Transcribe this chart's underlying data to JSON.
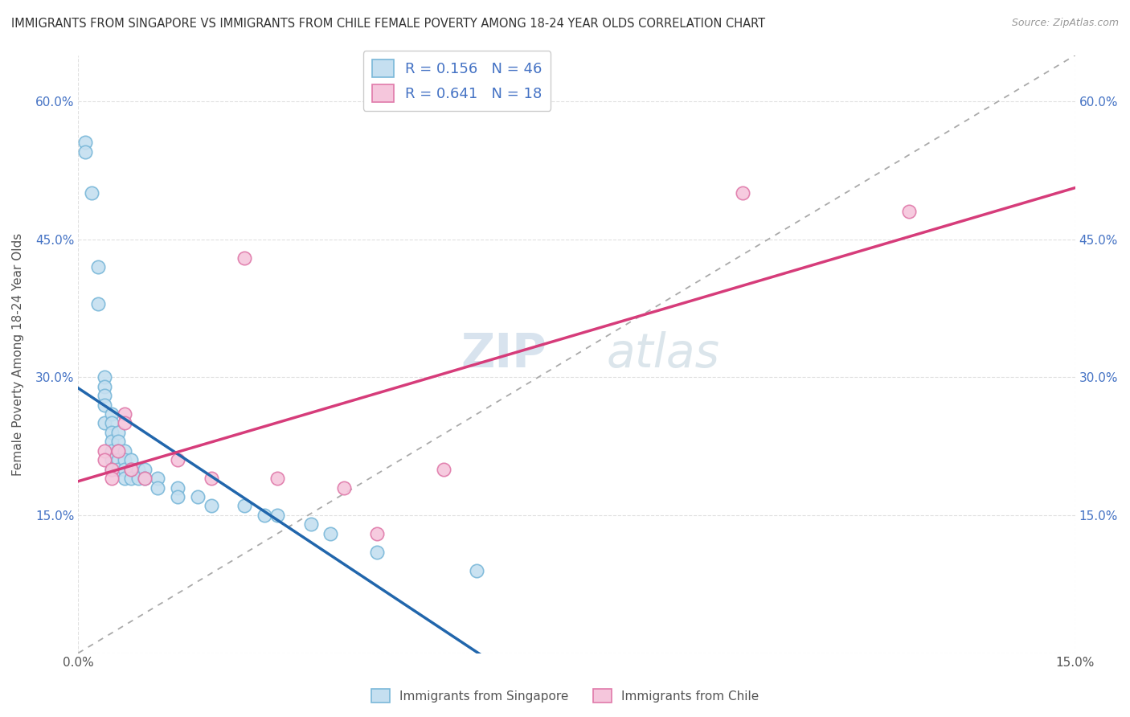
{
  "title": "IMMIGRANTS FROM SINGAPORE VS IMMIGRANTS FROM CHILE FEMALE POVERTY AMONG 18-24 YEAR OLDS CORRELATION CHART",
  "source": "Source: ZipAtlas.com",
  "ylabel": "Female Poverty Among 18-24 Year Olds",
  "xlim": [
    0.0,
    0.15
  ],
  "ylim": [
    0.0,
    0.65
  ],
  "yticks": [
    0.0,
    0.15,
    0.3,
    0.45,
    0.6
  ],
  "yticklabels": [
    "",
    "15.0%",
    "30.0%",
    "45.0%",
    "60.0%"
  ],
  "singapore_color": "#7ab8d9",
  "singapore_fill": "#c5dff0",
  "chile_color": "#e07aaa",
  "chile_fill": "#f5c6dc",
  "trend_singapore_color": "#2166ac",
  "trend_chile_color": "#d63c7a",
  "trend_ref_color": "#aaaaaa",
  "R_singapore": 0.156,
  "N_singapore": 46,
  "R_chile": 0.641,
  "N_chile": 18,
  "singapore_x": [
    0.001,
    0.001,
    0.002,
    0.003,
    0.003,
    0.004,
    0.004,
    0.004,
    0.004,
    0.004,
    0.005,
    0.005,
    0.005,
    0.005,
    0.005,
    0.005,
    0.005,
    0.006,
    0.006,
    0.006,
    0.006,
    0.006,
    0.007,
    0.007,
    0.007,
    0.007,
    0.008,
    0.008,
    0.008,
    0.009,
    0.009,
    0.01,
    0.01,
    0.012,
    0.012,
    0.015,
    0.015,
    0.018,
    0.02,
    0.025,
    0.028,
    0.03,
    0.035,
    0.038,
    0.045,
    0.06
  ],
  "singapore_y": [
    0.555,
    0.545,
    0.5,
    0.42,
    0.38,
    0.3,
    0.29,
    0.28,
    0.27,
    0.25,
    0.26,
    0.25,
    0.24,
    0.23,
    0.22,
    0.21,
    0.2,
    0.24,
    0.23,
    0.22,
    0.21,
    0.2,
    0.22,
    0.21,
    0.2,
    0.19,
    0.21,
    0.2,
    0.19,
    0.2,
    0.19,
    0.2,
    0.19,
    0.19,
    0.18,
    0.18,
    0.17,
    0.17,
    0.16,
    0.16,
    0.15,
    0.15,
    0.14,
    0.13,
    0.11,
    0.09
  ],
  "chile_x": [
    0.004,
    0.004,
    0.005,
    0.005,
    0.006,
    0.007,
    0.007,
    0.008,
    0.01,
    0.015,
    0.02,
    0.025,
    0.03,
    0.04,
    0.045,
    0.055,
    0.1,
    0.125
  ],
  "chile_y": [
    0.22,
    0.21,
    0.2,
    0.19,
    0.22,
    0.26,
    0.25,
    0.2,
    0.19,
    0.21,
    0.19,
    0.43,
    0.19,
    0.18,
    0.13,
    0.2,
    0.5,
    0.48
  ],
  "watermark_zip": "ZIP",
  "watermark_atlas": "atlas",
  "bg_color": "#ffffff",
  "grid_color": "#e0e0e0"
}
